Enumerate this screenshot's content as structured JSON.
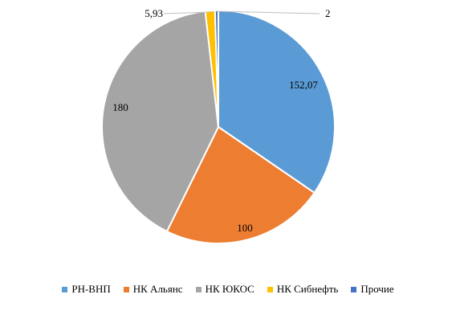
{
  "chart_data": {
    "type": "pie",
    "title": "",
    "categories": [
      "РН-ВНП",
      "НК Альянс",
      "НК ЮКОС",
      "НК Сибнефть",
      "Прочие"
    ],
    "values": [
      152.07,
      100,
      180,
      5.93,
      2
    ],
    "labels": [
      "152,07",
      "100",
      "180",
      "5,93",
      "2"
    ],
    "colors": [
      "#5b9bd5",
      "#ed7d31",
      "#a5a5a5",
      "#ffc000",
      "#4472c4"
    ],
    "legend_position": "bottom"
  }
}
